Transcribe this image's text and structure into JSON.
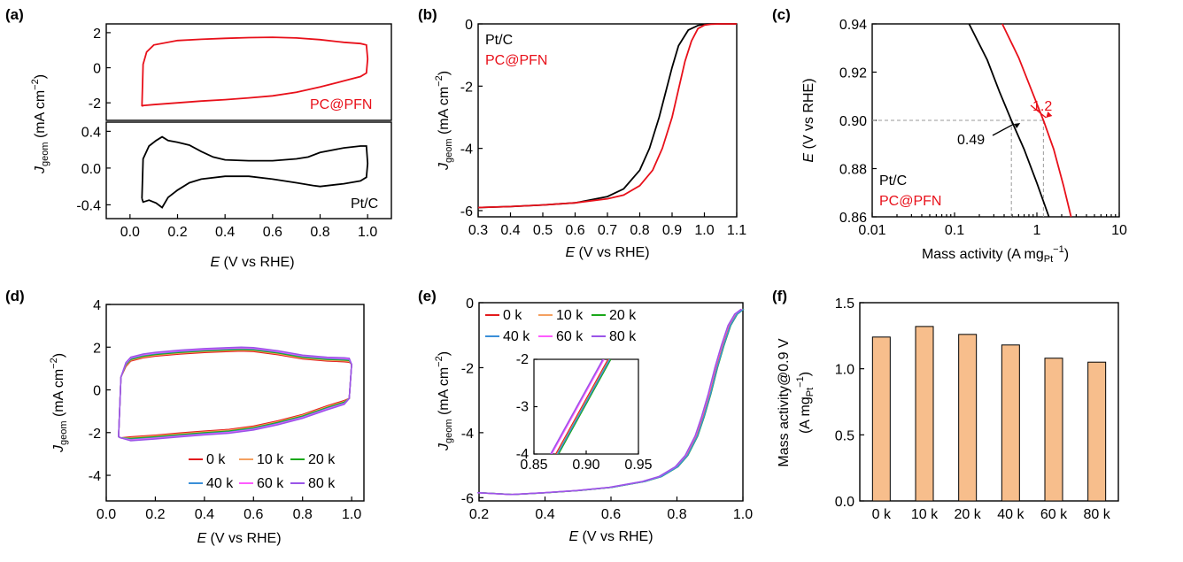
{
  "colors": {
    "pt_c": "#000000",
    "pc_pfn": "#e8101a",
    "series_0k": "#e31a1c",
    "series_10k": "#f4a060",
    "series_20k": "#1aa81a",
    "series_40k": "#3a8fd8",
    "series_60k": "#ff5cff",
    "series_80k": "#9a55e8",
    "bar_fill": "#f7be8c",
    "guide": "#9a9a9a"
  },
  "panels": {
    "a": {
      "label": "(a)",
      "xlabel_e": "E",
      "xlabel_rest": " (V vs RHE)",
      "ylabel_j": "J",
      "ylabel_sub": "geom",
      "ylabel_rest": " (mA cm",
      "ylabel_sup": "−2",
      "ylabel_close": ")",
      "top_series": "PC@PFN",
      "bottom_series": "Pt/C"
    },
    "b": {
      "label": "(b)",
      "xlabel_e": "E",
      "xlabel_rest": " (V vs RHE)",
      "ylabel_j": "J",
      "ylabel_sub": "geom",
      "ylabel_rest": " (mA cm",
      "ylabel_sup": "−2",
      "ylabel_close": ")",
      "legend": [
        "Pt/C",
        "PC@PFN"
      ]
    },
    "c": {
      "label": "(c)",
      "xlabel_main": "Mass activity (A mg",
      "xlabel_sub": "Pt",
      "xlabel_sup": "−1",
      "xlabel_close": ")",
      "ylabel_e": "E",
      "ylabel_rest": " (V vs RHE)",
      "legend": [
        "Pt/C",
        "PC@PFN"
      ],
      "annotation_ptc": "0.49",
      "annotation_pcpfn": "1.2"
    },
    "d": {
      "label": "(d)",
      "xlabel_e": "E",
      "xlabel_rest": " (V vs RHE)",
      "ylabel_j": "J",
      "ylabel_sub": "geom",
      "ylabel_rest": " (mA cm",
      "ylabel_sup": "−2",
      "ylabel_close": ")",
      "legend": [
        "0 k",
        "10 k",
        "20 k",
        "40 k",
        "60 k",
        "80 k"
      ]
    },
    "e": {
      "label": "(e)",
      "xlabel_e": "E",
      "xlabel_rest": " (V vs RHE)",
      "ylabel_j": "J",
      "ylabel_sub": "geom",
      "ylabel_rest": " (mA cm",
      "ylabel_sup": "−2",
      "ylabel_close": ")",
      "legend": [
        "0 k",
        "10 k",
        "20 k",
        "40 k",
        "60 k",
        "80 k"
      ]
    },
    "f": {
      "label": "(f)",
      "ylabel_line1": "Mass activity@0.9 V",
      "ylabel_line2a": "(A mg",
      "ylabel_line2sub": "Pt",
      "ylabel_line2sup": "−1",
      "ylabel_line2close": ")"
    }
  },
  "chart_data": [
    {
      "panel": "a-top",
      "type": "line",
      "xlim": [
        -0.1,
        1.1
      ],
      "ylim": [
        -3,
        2.5
      ],
      "yticks": [
        "-2",
        "0",
        "2"
      ],
      "series": [
        {
          "name": "PC@PFN",
          "x": [
            0.05,
            0.055,
            0.07,
            0.1,
            0.2,
            0.3,
            0.4,
            0.5,
            0.6,
            0.7,
            0.8,
            0.9,
            0.97,
            0.995,
            1.0,
            0.995,
            0.97,
            0.9,
            0.8,
            0.7,
            0.6,
            0.5,
            0.4,
            0.3,
            0.2,
            0.1,
            0.055,
            0.05
          ],
          "y": [
            -2.2,
            0.2,
            0.9,
            1.3,
            1.55,
            1.62,
            1.68,
            1.72,
            1.74,
            1.7,
            1.6,
            1.45,
            1.38,
            1.3,
            0.5,
            -0.3,
            -0.5,
            -0.75,
            -1.1,
            -1.4,
            -1.6,
            -1.72,
            -1.82,
            -1.9,
            -2.0,
            -2.1,
            -2.15,
            -2.2
          ]
        }
      ]
    },
    {
      "panel": "a-bottom",
      "type": "line",
      "xlim": [
        -0.1,
        1.1
      ],
      "ylim": [
        -0.55,
        0.5
      ],
      "xticks": [
        "0.0",
        "0.2",
        "0.4",
        "0.6",
        "0.8",
        "1.0"
      ],
      "yticks": [
        "-0.4",
        "0.0",
        "0.4"
      ],
      "series": [
        {
          "name": "Pt/C",
          "x": [
            0.05,
            0.055,
            0.08,
            0.11,
            0.135,
            0.16,
            0.2,
            0.25,
            0.3,
            0.35,
            0.4,
            0.5,
            0.6,
            0.7,
            0.75,
            0.8,
            0.9,
            0.97,
            0.995,
            1.0,
            0.995,
            0.97,
            0.9,
            0.8,
            0.77,
            0.7,
            0.6,
            0.5,
            0.4,
            0.3,
            0.25,
            0.2,
            0.16,
            0.135,
            0.11,
            0.08,
            0.055,
            0.05
          ],
          "y": [
            -0.33,
            0.1,
            0.24,
            0.3,
            0.34,
            0.3,
            0.28,
            0.25,
            0.18,
            0.12,
            0.09,
            0.08,
            0.08,
            0.1,
            0.12,
            0.17,
            0.22,
            0.24,
            0.24,
            0.05,
            -0.1,
            -0.14,
            -0.17,
            -0.2,
            -0.19,
            -0.16,
            -0.12,
            -0.09,
            -0.09,
            -0.12,
            -0.16,
            -0.24,
            -0.32,
            -0.43,
            -0.38,
            -0.35,
            -0.37,
            -0.33
          ]
        }
      ]
    },
    {
      "panel": "b",
      "type": "line",
      "xlim": [
        0.3,
        1.1
      ],
      "ylim": [
        -6.2,
        0
      ],
      "xticks": [
        "0.3",
        "0.4",
        "0.5",
        "0.6",
        "0.7",
        "0.8",
        "0.9",
        "1.0",
        "1.1"
      ],
      "yticks": [
        "0",
        "-2",
        "-4",
        "-6"
      ],
      "series": [
        {
          "name": "Pt/C",
          "x": [
            0.3,
            0.4,
            0.5,
            0.6,
            0.7,
            0.75,
            0.8,
            0.83,
            0.86,
            0.88,
            0.9,
            0.92,
            0.95,
            0.98,
            1.0,
            1.02,
            1.05,
            1.1
          ],
          "y": [
            -5.9,
            -5.87,
            -5.82,
            -5.75,
            -5.55,
            -5.3,
            -4.7,
            -4.0,
            -3.0,
            -2.2,
            -1.4,
            -0.7,
            -0.2,
            -0.05,
            -0.01,
            0,
            0,
            0
          ]
        },
        {
          "name": "PC@PFN",
          "x": [
            0.3,
            0.4,
            0.5,
            0.6,
            0.7,
            0.75,
            0.8,
            0.84,
            0.87,
            0.9,
            0.92,
            0.94,
            0.96,
            0.98,
            1.0,
            1.02,
            1.05,
            1.1
          ],
          "y": [
            -5.9,
            -5.87,
            -5.82,
            -5.75,
            -5.62,
            -5.5,
            -5.2,
            -4.7,
            -4.0,
            -3.0,
            -2.1,
            -1.2,
            -0.55,
            -0.15,
            -0.04,
            -0.01,
            0,
            0
          ]
        }
      ]
    },
    {
      "panel": "c",
      "type": "line",
      "x_scale": "log",
      "xlim": [
        0.01,
        10
      ],
      "ylim": [
        0.86,
        0.94
      ],
      "xticks": [
        "0.01",
        "0.1",
        "1",
        "10"
      ],
      "yticks": [
        "0.86",
        "0.88",
        "0.90",
        "0.92",
        "0.94"
      ],
      "series": [
        {
          "name": "Pt/C",
          "x": [
            0.15,
            0.25,
            0.35,
            0.49,
            0.7,
            1.0,
            1.4
          ],
          "y": [
            0.94,
            0.925,
            0.912,
            0.9,
            0.888,
            0.874,
            0.86
          ]
        },
        {
          "name": "PC@PFN",
          "x": [
            0.38,
            0.6,
            0.85,
            1.2,
            1.6,
            2.1,
            2.6
          ],
          "y": [
            0.94,
            0.926,
            0.913,
            0.9,
            0.888,
            0.873,
            0.86
          ]
        }
      ]
    },
    {
      "panel": "d",
      "type": "line",
      "xlim": [
        0.0,
        1.05
      ],
      "ylim": [
        -5.2,
        4.0
      ],
      "xticks": [
        "0.0",
        "0.2",
        "0.4",
        "0.6",
        "0.8",
        "1.0"
      ],
      "yticks": [
        "4",
        "2",
        "0",
        "-2",
        "-4"
      ],
      "upper": {
        "x": [
          0.05,
          0.06,
          0.08,
          0.1,
          0.15,
          0.2,
          0.3,
          0.4,
          0.5,
          0.55,
          0.6,
          0.7,
          0.8,
          0.9,
          0.97,
          0.99,
          1.0
        ],
        "y": [
          -2.2,
          0.6,
          1.1,
          1.35,
          1.5,
          1.58,
          1.68,
          1.75,
          1.8,
          1.82,
          1.8,
          1.65,
          1.45,
          1.35,
          1.32,
          1.3,
          1.2
        ]
      },
      "lower": {
        "x": [
          1.0,
          0.99,
          0.97,
          0.9,
          0.8,
          0.7,
          0.6,
          0.5,
          0.4,
          0.3,
          0.2,
          0.1,
          0.06,
          0.05
        ],
        "y": [
          1.2,
          -0.4,
          -0.5,
          -0.75,
          -1.15,
          -1.45,
          -1.7,
          -1.85,
          -1.93,
          -2.02,
          -2.12,
          -2.2,
          -2.25,
          -2.2
        ]
      },
      "series": [
        {
          "name": "0 k",
          "delta": 0
        },
        {
          "name": "10 k",
          "delta": 0.04
        },
        {
          "name": "20 k",
          "delta": 0.08
        },
        {
          "name": "40 k",
          "delta": 0.12
        },
        {
          "name": "60 k",
          "delta": 0.15
        },
        {
          "name": "80 k",
          "delta": 0.18
        }
      ]
    },
    {
      "panel": "e",
      "type": "line",
      "xlim": [
        0.2,
        1.0
      ],
      "ylim": [
        -6.1,
        0
      ],
      "xticks": [
        "0.2",
        "0.4",
        "0.6",
        "0.8",
        "1.0"
      ],
      "yticks": [
        "0",
        "-2",
        "-4",
        "-6"
      ],
      "base": {
        "x": [
          0.2,
          0.3,
          0.4,
          0.5,
          0.6,
          0.7,
          0.75,
          0.8,
          0.83,
          0.86,
          0.88,
          0.9,
          0.92,
          0.94,
          0.96,
          0.98,
          1.0
        ],
        "y": [
          -5.85,
          -5.9,
          -5.85,
          -5.78,
          -5.68,
          -5.5,
          -5.35,
          -5.05,
          -4.7,
          -4.1,
          -3.5,
          -2.8,
          -2.0,
          -1.3,
          -0.7,
          -0.35,
          -0.2
        ]
      },
      "series": [
        {
          "name": "0 k",
          "dx": 0.0
        },
        {
          "name": "10 k",
          "dx": 0.001
        },
        {
          "name": "20 k",
          "dx": 0.003
        },
        {
          "name": "40 k",
          "dx": 0.002
        },
        {
          "name": "60 k",
          "dx": -0.004
        },
        {
          "name": "80 k",
          "dx": -0.005
        }
      ],
      "inset": {
        "xlim": [
          0.85,
          0.95
        ],
        "ylim": [
          -4,
          -2
        ],
        "xticks": [
          "0.85",
          "0.90",
          "0.95"
        ],
        "yticks": [
          "-2",
          "-3",
          "-4"
        ]
      }
    },
    {
      "panel": "f",
      "type": "bar",
      "categories": [
        "0 k",
        "10 k",
        "20 k",
        "40 k",
        "60 k",
        "80 k"
      ],
      "values": [
        1.24,
        1.32,
        1.26,
        1.18,
        1.08,
        1.05
      ],
      "ylim": [
        0.0,
        1.5
      ],
      "yticks": [
        "0.0",
        "0.5",
        "1.0",
        "1.5"
      ]
    }
  ]
}
